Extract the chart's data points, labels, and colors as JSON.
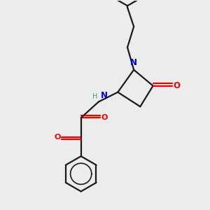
{
  "bg_color": "#ececec",
  "bond_color": "#1a1a1a",
  "N_color": "#0000ee",
  "O_color": "#ee0000",
  "H_color": "#3a9a9a",
  "lw": 1.6,
  "dbo": 0.035,
  "xlim": [
    0.0,
    5.5
  ],
  "ylim": [
    0.0,
    6.5
  ]
}
